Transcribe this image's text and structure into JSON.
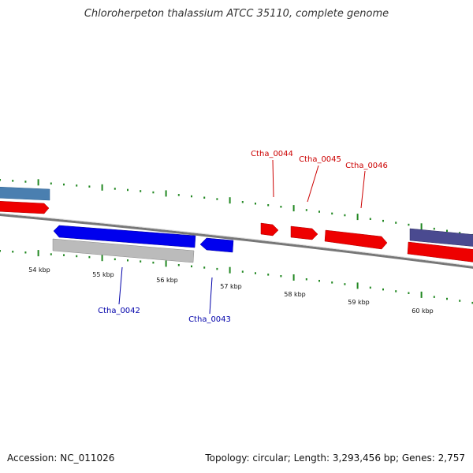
{
  "title": "Chloroherpeton thalassium ATCC 35110, complete genome",
  "footer": {
    "accession": "Accession: NC_011026",
    "summary": "Topology: circular; Length: 3,293,456 bp; Genes: 2,757"
  },
  "colors": {
    "forward_gene": "#ee0000",
    "reverse_gene": "#0000ee",
    "forward_label": "#cc0000",
    "reverse_label": "#0000aa",
    "tick": "#228822",
    "backbone": "#777777",
    "steelblue_gene": "#4a7fb0",
    "slate_gene": "#4a4a90",
    "gray_gene": "#bbbbbb"
  },
  "ruler_labels": [
    "54 kbp",
    "55 kbp",
    "56 kbp",
    "57 kbp",
    "58 kbp",
    "59 kbp",
    "60 kbp"
  ],
  "gene_labels_forward": [
    "Ctha_0044",
    "Ctha_0045",
    "Ctha_0046"
  ],
  "gene_labels_reverse": [
    "Ctha_0042",
    "Ctha_0043"
  ]
}
